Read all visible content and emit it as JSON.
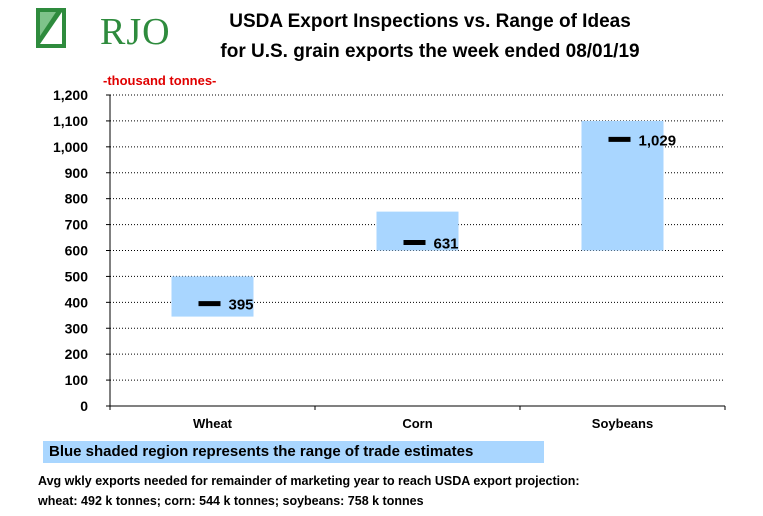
{
  "logo": {
    "text": "RJO"
  },
  "title_line1": "USDA Export Inspections vs. Range of Ideas",
  "title_line2": "for U.S. grain exports the week ended 08/01/19",
  "unit_label": "-thousand tonnes-",
  "legend_note": "Blue shaded region represents the range of trade estimates",
  "footnote_line1": "Avg wkly exports needed for remainder of marketing year to reach USDA export projection:",
  "footnote_line2": "wheat: 492 k tonnes; corn: 544 k tonnes; soybeans: 758 k tonnes",
  "chart_data": {
    "type": "bar",
    "categories": [
      "Wheat",
      "Corn",
      "Soybeans"
    ],
    "range_low": [
      345,
      600,
      600
    ],
    "range_high": [
      500,
      750,
      1100
    ],
    "actual": [
      395,
      631,
      1029
    ],
    "actual_labels": [
      "395",
      "631",
      "1,029"
    ],
    "ylim": [
      0,
      1200
    ],
    "yticks": [
      0,
      100,
      200,
      300,
      400,
      500,
      600,
      700,
      800,
      900,
      1000,
      1100,
      1200
    ],
    "ytick_labels": [
      "0",
      "100",
      "200",
      "300",
      "400",
      "500",
      "600",
      "700",
      "800",
      "900",
      "1,000",
      "1,100",
      "1,200"
    ],
    "grid": true,
    "colors": {
      "range": "#a9d6ff",
      "marker": "#000000",
      "grid": "#000000"
    }
  }
}
